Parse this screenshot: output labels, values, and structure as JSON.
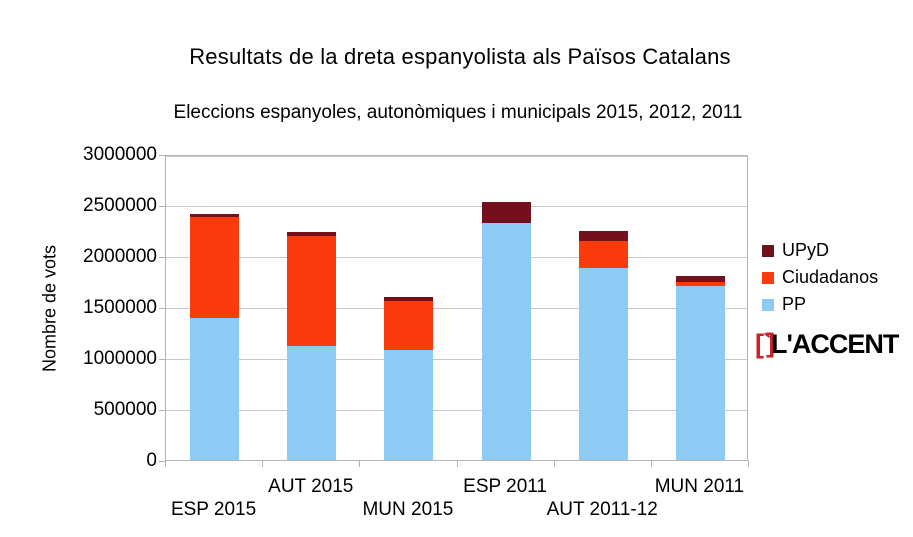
{
  "chart_data": {
    "type": "bar",
    "stacked": true,
    "title": "Resultats de la dreta espanyolista als Països Catalans",
    "subtitle": "Eleccions espanyoles, autonòmiques i municipals 2015, 2012, 2011",
    "ylabel": "Nombre de vots",
    "xlabel": "",
    "ylim": [
      0,
      3000000
    ],
    "yticks": [
      0,
      500000,
      1000000,
      1500000,
      2000000,
      2500000,
      3000000
    ],
    "grid": true,
    "legend_position": "right",
    "legend_order": [
      "UPyD",
      "Ciudadanos",
      "PP"
    ],
    "categories": [
      "ESP 2015",
      "AUT 2015",
      "MUN 2015",
      "ESP 2011",
      "AUT 2011-12",
      "MUN 2011"
    ],
    "series": [
      {
        "name": "PP",
        "color": "#8ECBF4",
        "values": [
          1390000,
          1120000,
          1080000,
          2320000,
          1880000,
          1710000
        ]
      },
      {
        "name": "Ciudadanos",
        "color": "#FB3B0C",
        "values": [
          990000,
          1080000,
          480000,
          0,
          270000,
          40000
        ]
      },
      {
        "name": "UPyD",
        "color": "#72101E",
        "values": [
          30000,
          40000,
          40000,
          210000,
          100000,
          50000
        ]
      }
    ]
  },
  "logo": {
    "red_open": "[`",
    "red_close": "]",
    "text": "L'ACCENT",
    "red_color": "#cc2127"
  },
  "style": {
    "gridline_color": "#c8c8c8",
    "frame_color": "#b4b4b4",
    "background": "#ffffff",
    "text_color": "#000000"
  }
}
